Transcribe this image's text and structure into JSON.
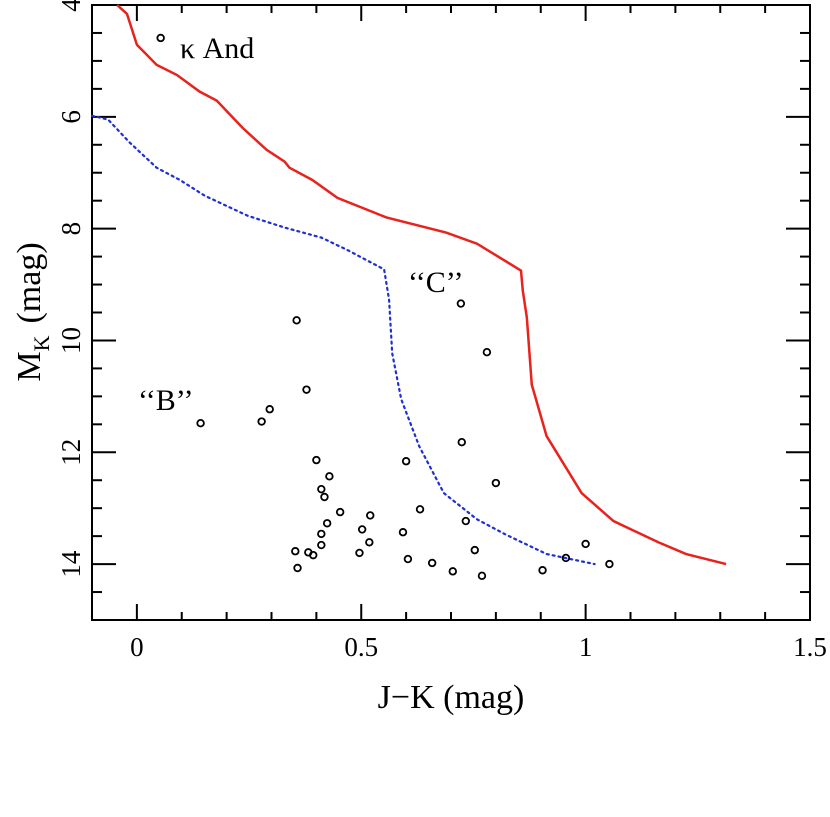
{
  "chart_data": {
    "type": "scatter",
    "xlabel": "J−K (mag)",
    "ylabel": "M",
    "ylabel_sub": "K",
    "ylabel_unit": "(mag)",
    "xlim": [
      -0.1,
      1.5
    ],
    "ylim": [
      4,
      15
    ],
    "y_inverted": true,
    "xticks": [
      0,
      0.5,
      1,
      1.5
    ],
    "yticks": [
      4,
      6,
      8,
      10,
      12,
      14
    ],
    "xminorticks": [
      -0.1,
      0.1,
      0.2,
      0.3,
      0.4,
      0.6,
      0.7,
      0.8,
      0.9,
      1.1,
      1.2,
      1.3,
      1.4
    ],
    "yminorticks": [
      4.5,
      5,
      5.5,
      6.5,
      7,
      7.5,
      8.5,
      9,
      9.5,
      10.5,
      11,
      11.5,
      12.5,
      13,
      13.5,
      14.5
    ],
    "series": [
      {
        "style": "line",
        "dashed": false,
        "color": "#e8221c",
        "x": [
          -0.044,
          -0.022,
          0,
          0.044,
          0.089,
          0.14,
          0.178,
          0.236,
          0.289,
          0.329,
          0.34,
          0.391,
          0.447,
          0.556,
          0.689,
          0.758,
          0.856,
          0.86,
          0.869,
          0.88,
          0.913,
          0.991,
          1.062,
          1.162,
          1.224,
          1.313
        ],
        "y": [
          4.0,
          4.16,
          4.71,
          5.07,
          5.25,
          5.55,
          5.71,
          6.2,
          6.59,
          6.8,
          6.91,
          7.13,
          7.45,
          7.8,
          8.07,
          8.27,
          8.75,
          9.11,
          9.59,
          10.79,
          11.71,
          12.73,
          13.23,
          13.61,
          13.82,
          14.0
        ]
      },
      {
        "style": "line",
        "dashed": true,
        "color": "#1f2fd6",
        "x": [
          -0.1,
          -0.064,
          -0.016,
          0.044,
          0.096,
          0.151,
          0.247,
          0.329,
          0.411,
          0.471,
          0.551,
          0.562,
          0.569,
          0.589,
          0.629,
          0.684,
          0.758,
          0.824,
          0.913,
          1.02
        ],
        "y": [
          5.98,
          6.05,
          6.46,
          6.91,
          7.13,
          7.41,
          7.77,
          7.98,
          8.16,
          8.39,
          8.73,
          9.27,
          10.23,
          11.05,
          11.89,
          12.73,
          13.2,
          13.48,
          13.82,
          14.0
        ]
      },
      {
        "style": "points",
        "color": "#000000",
        "x": [
          0.053,
          0.356,
          0.722,
          0.78,
          0.378,
          0.296,
          0.278,
          0.142,
          0.724,
          0.6,
          0.4,
          0.429,
          0.8,
          0.411,
          0.418,
          0.631,
          0.453,
          0.52,
          0.424,
          0.733,
          0.502,
          0.411,
          0.593,
          0.518,
          0.411,
          1.0,
          0.353,
          0.382,
          0.753,
          0.496,
          0.393,
          0.956,
          0.604,
          0.658,
          1.053,
          0.358,
          0.704,
          0.904,
          0.769
        ],
        "y": [
          4.59,
          9.64,
          9.34,
          10.21,
          10.88,
          11.23,
          11.45,
          11.48,
          11.82,
          12.16,
          12.14,
          12.43,
          12.55,
          12.66,
          12.8,
          13.02,
          13.07,
          13.13,
          13.27,
          13.23,
          13.38,
          13.46,
          13.43,
          13.61,
          13.66,
          13.64,
          13.77,
          13.79,
          13.75,
          13.8,
          13.84,
          13.89,
          13.91,
          13.98,
          14.0,
          14.07,
          14.13,
          14.11,
          14.21
        ]
      }
    ],
    "annotations": [
      "κ And",
      "‘‘B’’",
      "‘‘C’’"
    ]
  }
}
